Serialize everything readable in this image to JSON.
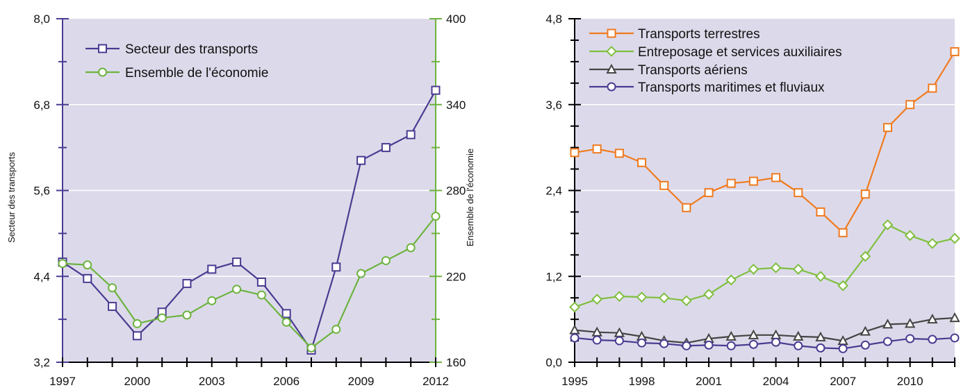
{
  "chart_data": [
    {
      "type": "line",
      "x": [
        1997,
        1998,
        1999,
        2000,
        2001,
        2002,
        2003,
        2004,
        2005,
        2006,
        2007,
        2008,
        2009,
        2010,
        2011,
        2012
      ],
      "x_ticks": [
        "1997",
        "2000",
        "2003",
        "2006",
        "2009",
        "2012"
      ],
      "ylabel_left": "Secteur des transports",
      "ylabel_right": "Ensemble de l'économie",
      "ylim_left": [
        3.2,
        8.0
      ],
      "ylim_right": [
        160,
        400
      ],
      "yticks_left": [
        "3,2",
        "4,4",
        "5,6",
        "6,8",
        "8,0"
      ],
      "yticks_right": [
        "160",
        "220",
        "280",
        "340",
        "400"
      ],
      "legend_position": "top-left",
      "grid": true,
      "series": [
        {
          "name": "Secteur des transports",
          "axis": "left",
          "color": "#4b3a92",
          "marker": "square",
          "values": [
            4.6,
            4.37,
            3.98,
            3.57,
            3.9,
            4.3,
            4.5,
            4.6,
            4.32,
            3.88,
            3.37,
            4.53,
            6.02,
            6.2,
            6.38,
            7.0
          ]
        },
        {
          "name": "Ensemble de l'économie",
          "axis": "right",
          "color": "#6cb33e",
          "marker": "circle",
          "values": [
            229,
            228,
            212,
            187,
            191,
            193,
            203,
            211,
            207,
            188,
            170,
            183,
            222,
            231,
            240,
            262
          ]
        }
      ]
    },
    {
      "type": "line",
      "x": [
        1995,
        1996,
        1997,
        1998,
        1999,
        2000,
        2001,
        2002,
        2003,
        2004,
        2005,
        2006,
        2007,
        2008,
        2009,
        2010,
        2011,
        2012
      ],
      "x_ticks": [
        "1995",
        "1998",
        "2001",
        "2004",
        "2007",
        "2010"
      ],
      "ylim": [
        0.0,
        4.8
      ],
      "yticks": [
        "0,0",
        "1,2",
        "2,4",
        "3,6",
        "4,8"
      ],
      "legend_position": "top-left",
      "grid": true,
      "series": [
        {
          "name": "Transports terrestres",
          "color": "#f07a1e",
          "marker": "square",
          "values": [
            2.93,
            2.98,
            2.92,
            2.79,
            2.47,
            2.16,
            2.37,
            2.5,
            2.53,
            2.58,
            2.37,
            2.1,
            1.81,
            2.35,
            3.28,
            3.6,
            3.83,
            4.34
          ]
        },
        {
          "name": "Entreposage et services auxiliaires",
          "color": "#7fbf3f",
          "marker": "diamond",
          "values": [
            0.77,
            0.88,
            0.92,
            0.91,
            0.9,
            0.86,
            0.95,
            1.15,
            1.3,
            1.32,
            1.3,
            1.2,
            1.07,
            1.48,
            1.92,
            1.77,
            1.66,
            1.73
          ]
        },
        {
          "name": "Transports aériens",
          "color": "#444444",
          "marker": "triangle",
          "values": [
            0.45,
            0.42,
            0.41,
            0.36,
            0.3,
            0.27,
            0.33,
            0.36,
            0.38,
            0.38,
            0.36,
            0.35,
            0.3,
            0.43,
            0.53,
            0.54,
            0.6,
            0.62
          ]
        },
        {
          "name": "Transports maritimes et fluviaux",
          "color": "#4b3a92",
          "marker": "circle",
          "values": [
            0.34,
            0.31,
            0.3,
            0.27,
            0.26,
            0.23,
            0.24,
            0.23,
            0.25,
            0.28,
            0.23,
            0.2,
            0.19,
            0.24,
            0.29,
            0.33,
            0.32,
            0.34
          ]
        }
      ]
    }
  ]
}
